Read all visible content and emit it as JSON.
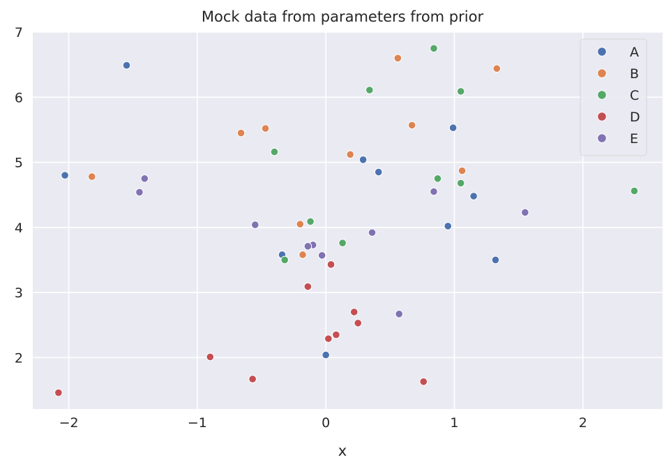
{
  "chart_data": {
    "type": "scatter",
    "title": "Mock data from parameters from prior",
    "xlabel": "x",
    "ylabel": "",
    "xlim": [
      -2.28,
      2.62
    ],
    "ylim": [
      1.21,
      7.0
    ],
    "xticks": [
      -2,
      -1,
      0,
      1,
      2
    ],
    "xtick_labels": [
      "−2",
      "−1",
      "0",
      "1",
      "2"
    ],
    "yticks": [
      2,
      3,
      4,
      5,
      6,
      7
    ],
    "ytick_labels": [
      "2",
      "3",
      "4",
      "5",
      "6",
      "7"
    ],
    "grid": true,
    "legend_position": "top-right",
    "series": [
      {
        "name": "A",
        "color": "#4c72b0",
        "points": [
          {
            "x": -1.55,
            "y": 6.49
          },
          {
            "x": -2.03,
            "y": 4.8
          },
          {
            "x": 0.29,
            "y": 5.04
          },
          {
            "x": 0.41,
            "y": 4.85
          },
          {
            "x": 0.99,
            "y": 5.53
          },
          {
            "x": 1.15,
            "y": 4.48
          },
          {
            "x": 0.95,
            "y": 4.02
          },
          {
            "x": 1.32,
            "y": 3.5
          },
          {
            "x": -0.34,
            "y": 3.58
          },
          {
            "x": 0.0,
            "y": 2.04
          }
        ]
      },
      {
        "name": "B",
        "color": "#dd8452",
        "points": [
          {
            "x": 0.56,
            "y": 6.6
          },
          {
            "x": 1.33,
            "y": 6.44
          },
          {
            "x": -0.66,
            "y": 5.45
          },
          {
            "x": -0.47,
            "y": 5.52
          },
          {
            "x": 0.67,
            "y": 5.57
          },
          {
            "x": 0.19,
            "y": 5.12
          },
          {
            "x": 1.06,
            "y": 4.87
          },
          {
            "x": -1.82,
            "y": 4.78
          },
          {
            "x": -0.2,
            "y": 4.05
          },
          {
            "x": -0.18,
            "y": 3.58
          }
        ]
      },
      {
        "name": "C",
        "color": "#55a868",
        "points": [
          {
            "x": 0.84,
            "y": 6.75
          },
          {
            "x": 0.34,
            "y": 6.11
          },
          {
            "x": 1.05,
            "y": 6.09
          },
          {
            "x": -0.4,
            "y": 5.16
          },
          {
            "x": 0.87,
            "y": 4.75
          },
          {
            "x": 1.05,
            "y": 4.68
          },
          {
            "x": 2.4,
            "y": 4.56
          },
          {
            "x": -0.12,
            "y": 4.09
          },
          {
            "x": 0.13,
            "y": 3.76
          },
          {
            "x": -0.32,
            "y": 3.5
          }
        ]
      },
      {
        "name": "D",
        "color": "#c44e52",
        "points": [
          {
            "x": 0.04,
            "y": 3.43
          },
          {
            "x": -0.14,
            "y": 3.09
          },
          {
            "x": 0.22,
            "y": 2.7
          },
          {
            "x": 0.25,
            "y": 2.53
          },
          {
            "x": 0.08,
            "y": 2.35
          },
          {
            "x": 0.02,
            "y": 2.29
          },
          {
            "x": -0.9,
            "y": 2.01
          },
          {
            "x": -0.57,
            "y": 1.67
          },
          {
            "x": 0.76,
            "y": 1.63
          },
          {
            "x": -2.08,
            "y": 1.46
          }
        ]
      },
      {
        "name": "E",
        "color": "#8172b3",
        "points": [
          {
            "x": -1.41,
            "y": 4.75
          },
          {
            "x": -1.45,
            "y": 4.54
          },
          {
            "x": 0.84,
            "y": 4.55
          },
          {
            "x": 1.55,
            "y": 4.23
          },
          {
            "x": -0.55,
            "y": 4.04
          },
          {
            "x": 0.36,
            "y": 3.92
          },
          {
            "x": -0.1,
            "y": 3.73
          },
          {
            "x": -0.14,
            "y": 3.71
          },
          {
            "x": -0.03,
            "y": 3.57
          },
          {
            "x": 0.57,
            "y": 2.67
          }
        ]
      }
    ]
  },
  "style": {
    "plot_background": "#eaeaf2",
    "grid_color": "#ffffff",
    "legend_background": "#eaeaf2",
    "legend_border": "#d5d5d5"
  }
}
